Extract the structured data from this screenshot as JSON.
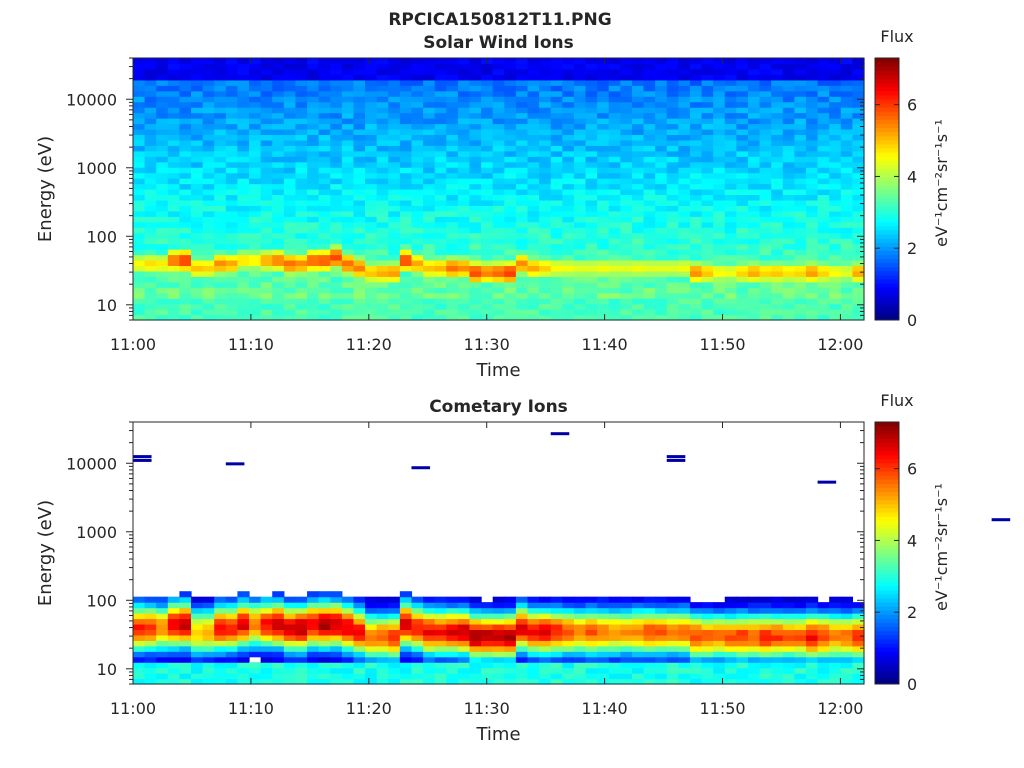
{
  "figure": {
    "title": "RPCICA150812T11.PNG"
  },
  "colors": {
    "colormap": "jet",
    "missing": "#ffffff",
    "axis": "#262626"
  },
  "chart_data": [
    {
      "type": "heatmap",
      "title": "Solar Wind Ions",
      "xlabel": "Time",
      "ylabel": "Energy (eV)",
      "x_ticks": [
        "11:00",
        "11:10",
        "11:20",
        "11:30",
        "11:40",
        "11:50",
        "12:00"
      ],
      "x_range": [
        "11:00",
        "12:02"
      ],
      "y_scale": "log",
      "y_ticks": [
        "10",
        "100",
        "1000",
        "10000"
      ],
      "y_range": [
        6,
        40000
      ],
      "colorbar": {
        "label": "Flux",
        "unit": "eV⁻¹cm⁻²sr⁻¹s⁻¹",
        "range": [
          0,
          7.3
        ],
        "ticks": [
          "0",
          "2",
          "4",
          "6"
        ]
      },
      "time_steps": 63,
      "peak_flux_profile": {
        "description_values": "approximate peak log-flux per minute, 11:00-12:02",
        "peak": [
          4.6,
          4.8,
          4.7,
          5.6,
          6.0,
          5.0,
          4.9,
          5.4,
          5.2,
          4.8,
          4.7,
          5.2,
          5.5,
          5.6,
          5.4,
          5.7,
          5.8,
          5.9,
          5.6,
          5.5,
          5.0,
          5.2,
          5.3,
          5.9,
          5.2,
          5.0,
          5.1,
          5.6,
          5.4,
          5.9,
          5.5,
          5.7,
          6.0,
          5.4,
          5.2,
          4.9,
          4.6,
          4.5,
          4.4,
          4.4,
          4.5,
          4.4,
          4.4,
          4.5,
          4.4,
          4.4,
          4.4,
          4.5,
          5.4,
          5.0,
          4.6,
          4.5,
          4.9,
          5.2,
          4.9,
          5.0,
          4.8,
          4.9,
          5.3,
          4.9,
          4.6,
          4.4,
          5.2
        ],
        "peak_energy_eV": [
          40,
          40,
          40,
          45,
          45,
          35,
          35,
          40,
          40,
          45,
          45,
          45,
          45,
          40,
          40,
          45,
          45,
          50,
          40,
          35,
          30,
          30,
          30,
          45,
          40,
          35,
          35,
          35,
          35,
          30,
          30,
          30,
          30,
          40,
          35,
          35,
          35,
          35,
          35,
          35,
          35,
          35,
          35,
          35,
          35,
          35,
          35,
          35,
          30,
          30,
          30,
          30,
          30,
          30,
          30,
          30,
          30,
          30,
          30,
          30,
          30,
          30,
          30
        ]
      }
    },
    {
      "type": "heatmap",
      "title": "Cometary Ions",
      "xlabel": "Time",
      "ylabel": "Energy (eV)",
      "x_ticks": [
        "11:00",
        "11:10",
        "11:20",
        "11:30",
        "11:40",
        "11:50",
        "12:00"
      ],
      "x_range": [
        "11:00",
        "12:02"
      ],
      "y_scale": "log",
      "y_ticks": [
        "10",
        "100",
        "1000",
        "10000"
      ],
      "y_range": [
        6,
        40000
      ],
      "colorbar": {
        "label": "Flux",
        "unit": "eV⁻¹cm⁻²sr⁻¹s⁻¹",
        "range": [
          0,
          7.3
        ],
        "ticks": [
          "0",
          "2",
          "4",
          "6"
        ]
      },
      "time_steps": 63,
      "peak_flux_profile": {
        "description_values": "approximate peak log-flux per minute, 11:00-12:02",
        "peak": [
          6.2,
          6.0,
          5.4,
          6.6,
          6.8,
          5.0,
          5.2,
          6.4,
          6.3,
          6.6,
          5.6,
          6.4,
          6.8,
          6.6,
          6.9,
          6.6,
          7.0,
          6.8,
          6.6,
          6.4,
          5.6,
          5.8,
          6.0,
          6.7,
          6.3,
          6.5,
          6.4,
          6.6,
          6.8,
          7.0,
          6.9,
          6.8,
          7.0,
          6.6,
          6.4,
          6.6,
          6.2,
          5.8,
          5.6,
          5.8,
          5.6,
          5.4,
          5.4,
          5.6,
          5.8,
          5.8,
          5.6,
          5.6,
          6.0,
          5.8,
          5.6,
          5.8,
          6.0,
          5.8,
          6.2,
          6.0,
          5.8,
          5.8,
          6.4,
          6.0,
          5.6,
          5.6,
          6.2
        ],
        "peak_energy_eV": [
          40,
          40,
          40,
          45,
          45,
          35,
          35,
          40,
          40,
          45,
          45,
          45,
          45,
          40,
          40,
          45,
          45,
          45,
          40,
          35,
          30,
          30,
          30,
          45,
          40,
          35,
          35,
          35,
          35,
          30,
          30,
          30,
          30,
          40,
          35,
          35,
          35,
          35,
          35,
          35,
          35,
          35,
          35,
          35,
          35,
          35,
          35,
          35,
          30,
          30,
          30,
          30,
          30,
          30,
          30,
          30,
          30,
          30,
          30,
          30,
          30,
          30,
          30
        ],
        "high_energy_lines_eV": [
          [
            11000,
            12500
          ],
          [
            9800
          ],
          [
            8600
          ],
          [
            27000
          ],
          [
            12500,
            11000
          ],
          [
            5300
          ],
          [
            1500
          ]
        ]
      }
    }
  ]
}
